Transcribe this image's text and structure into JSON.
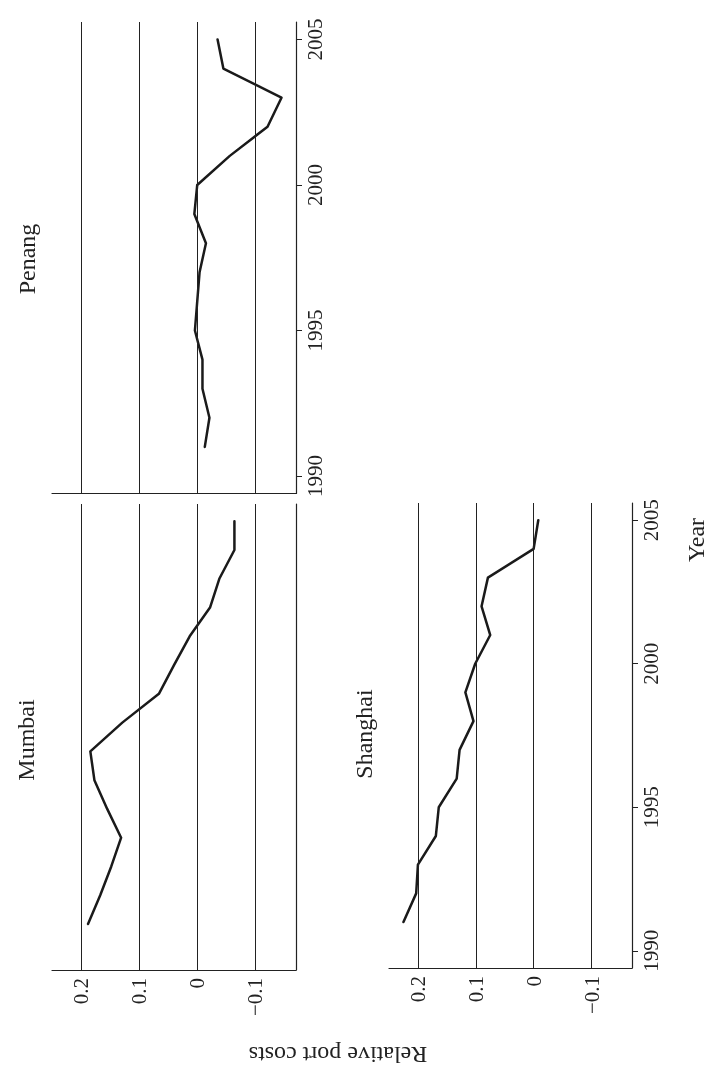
{
  "chart_data": [
    {
      "type": "line",
      "title": "Penang",
      "orientation": "horizontal",
      "color": "#1a1a1a",
      "grid": "x",
      "tick_labels": "y",
      "x": [
        1991,
        1992,
        1993,
        1994,
        1995,
        1996,
        1997,
        1998,
        1999,
        2000,
        2001,
        2002,
        2003,
        2004,
        2005
      ],
      "values": [
        -0.013,
        -0.021,
        -0.009,
        -0.009,
        0.004,
        0,
        -0.004,
        -0.015,
        0.005,
        0,
        -0.056,
        -0.121,
        -0.145,
        -0.045,
        -0.035
      ],
      "xlim": [
        0.25,
        -0.17
      ],
      "xticks": [
        0.2,
        0.1,
        0,
        -0.1
      ],
      "ylim": [
        1989.4,
        2005.6
      ],
      "yticks": [
        1990,
        1995,
        2000,
        2005
      ]
    },
    {
      "type": "line",
      "title": "Mumbai",
      "orientation": "horizontal",
      "color": "#1a1a1a",
      "grid": "x",
      "tick_labels": "x",
      "x": [
        1991,
        1992,
        1993,
        1994,
        1995,
        1996,
        1997,
        1998,
        1999,
        2000,
        2001,
        2002,
        2003,
        2004,
        2005
      ],
      "values": [
        0.188,
        0.167,
        0.148,
        0.131,
        0.155,
        0.177,
        0.184,
        0.129,
        0.066,
        0.04,
        0.013,
        -0.022,
        -0.038,
        -0.064,
        -0.064
      ],
      "xlim": [
        0.25,
        -0.17
      ],
      "xticks": [
        0.2,
        0.1,
        0,
        {
          "value": -0.1,
          "label": "−0.1"
        }
      ],
      "ylim": [
        1989.4,
        2005.6
      ],
      "yticks": [
        1990,
        1995,
        2000,
        2005
      ]
    },
    {
      "type": "line",
      "title": "Shanghai",
      "orientation": "horizontal",
      "color": "#1a1a1a",
      "grid": "x",
      "xlabel": "Relative port costs",
      "ylabel": "Year",
      "x": [
        1991,
        1992,
        1993,
        1994,
        1995,
        1996,
        1997,
        1998,
        1999,
        2000,
        2001,
        2002,
        2003,
        2004,
        2005
      ],
      "values": [
        0.225,
        0.203,
        0.2,
        0.169,
        0.164,
        0.133,
        0.128,
        0.104,
        0.118,
        0.101,
        0.075,
        0.09,
        0.079,
        0,
        -0.008
      ],
      "xlim": [
        0.25,
        -0.17
      ],
      "xticks": [
        0.2,
        0.1,
        0,
        {
          "value": -0.1,
          "label": "−0.1"
        }
      ],
      "ylim": [
        1989.4,
        2005.6
      ],
      "yticks": [
        1990,
        1995,
        2000,
        2005
      ]
    }
  ]
}
